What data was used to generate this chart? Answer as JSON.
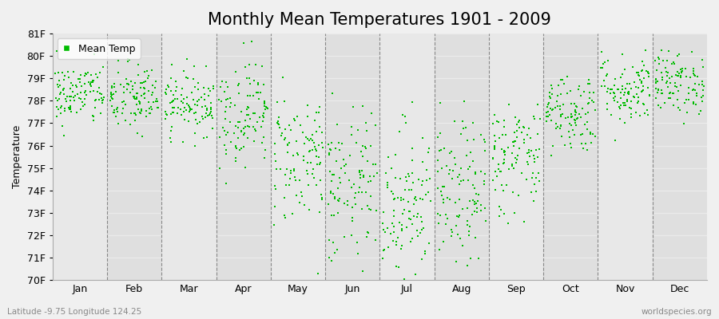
{
  "title": "Monthly Mean Temperatures 1901 - 2009",
  "ylabel": "Temperature",
  "bottom_left": "Latitude -9.75 Longitude 124.25",
  "bottom_right": "worldspecies.org",
  "legend_label": "Mean Temp",
  "ylim": [
    70,
    81
  ],
  "yticks": [
    70,
    71,
    72,
    73,
    74,
    75,
    76,
    77,
    78,
    79,
    80,
    81
  ],
  "ytick_labels": [
    "70F",
    "71F",
    "72F",
    "73F",
    "74F",
    "75F",
    "76F",
    "77F",
    "78F",
    "79F",
    "80F",
    "81F"
  ],
  "months": [
    "Jan",
    "Feb",
    "Mar",
    "Apr",
    "May",
    "Jun",
    "Jul",
    "Aug",
    "Sep",
    "Oct",
    "Nov",
    "Dec"
  ],
  "background_color": "#f0f0f0",
  "plot_bg_color": "#e8e8e8",
  "dot_color": "#00bb00",
  "dot_size": 4,
  "title_fontsize": 15,
  "axis_fontsize": 9,
  "label_fontsize": 9,
  "monthly_mean_temps": [
    78.3,
    78.1,
    77.9,
    77.5,
    75.5,
    74.0,
    73.5,
    73.8,
    75.5,
    77.5,
    78.5,
    78.8
  ],
  "monthly_std": [
    0.7,
    0.8,
    0.7,
    1.2,
    1.5,
    1.8,
    1.8,
    1.6,
    1.3,
    0.9,
    0.8,
    0.7
  ],
  "n_years": 109,
  "seed": 42
}
